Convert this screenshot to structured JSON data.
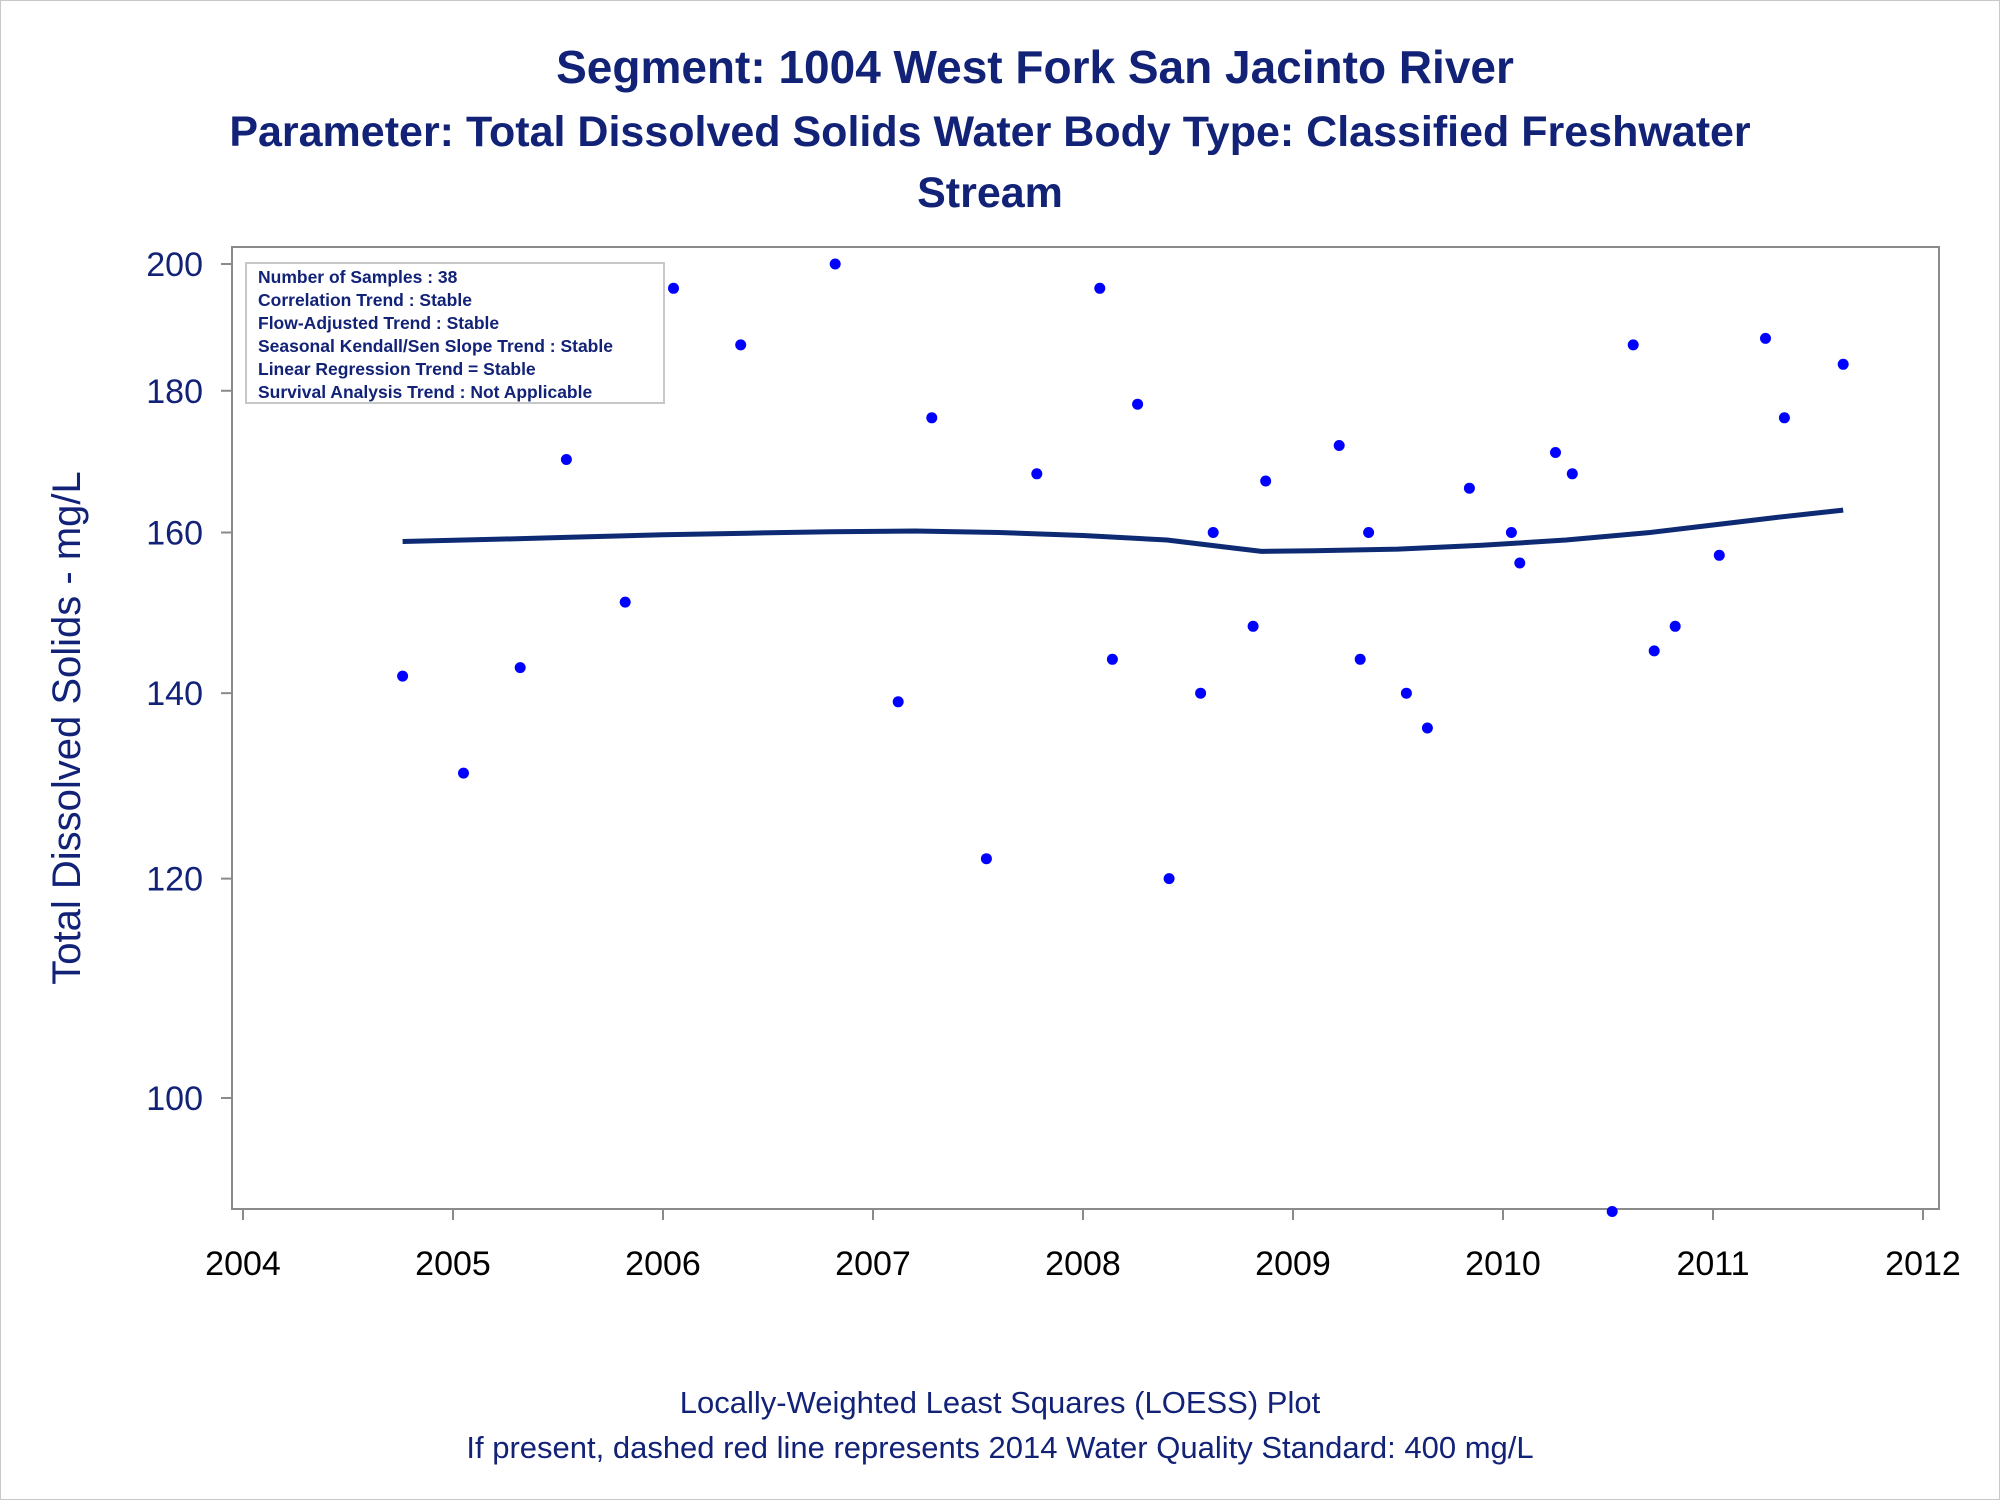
{
  "colors": {
    "text": "#112277",
    "points": "#0000ff",
    "loess": "#0d2a73",
    "axis": "#8a8a8a",
    "legend_border": "#c8c8c8"
  },
  "chart_data": {
    "type": "scatter",
    "title": "Segment: 1004  West Fork San Jacinto River",
    "subtitle_line1": "Parameter: Total Dissolved Solids   Water Body Type: Classified Freshwater",
    "subtitle_line2": "Stream",
    "ylabel": "Total Dissolved Solids - mg/L",
    "xlabel": "",
    "x_ticks": [
      "2004",
      "2005",
      "2006",
      "2007",
      "2008",
      "2009",
      "2010",
      "2011",
      "2012"
    ],
    "y_ticks": [
      "200",
      "180",
      "160",
      "140",
      "120",
      "100"
    ],
    "xlim": [
      2004,
      2012
    ],
    "ylim": [
      90,
      203
    ],
    "y_scale": "log",
    "grid": false,
    "legend_placement": "top-left",
    "stats": [
      "Number of Samples : 38",
      "Correlation Trend : Stable",
      "Flow-Adjusted Trend : Stable",
      "Seasonal Kendall/Sen Slope Trend : Stable",
      "Linear Regression Trend = Stable",
      "Survival Analysis Trend : Not Applicable"
    ],
    "points": [
      {
        "x": 2004.76,
        "y": 142
      },
      {
        "x": 2005.05,
        "y": 131
      },
      {
        "x": 2005.32,
        "y": 143
      },
      {
        "x": 2005.54,
        "y": 170
      },
      {
        "x": 2005.82,
        "y": 151
      },
      {
        "x": 2006.05,
        "y": 196
      },
      {
        "x": 2006.37,
        "y": 187
      },
      {
        "x": 2006.82,
        "y": 200
      },
      {
        "x": 2007.12,
        "y": 139
      },
      {
        "x": 2007.28,
        "y": 176
      },
      {
        "x": 2007.54,
        "y": 122
      },
      {
        "x": 2007.78,
        "y": 168
      },
      {
        "x": 2008.08,
        "y": 196
      },
      {
        "x": 2008.14,
        "y": 144
      },
      {
        "x": 2008.26,
        "y": 178
      },
      {
        "x": 2008.41,
        "y": 120
      },
      {
        "x": 2008.56,
        "y": 140
      },
      {
        "x": 2008.62,
        "y": 160
      },
      {
        "x": 2008.81,
        "y": 148
      },
      {
        "x": 2008.87,
        "y": 167
      },
      {
        "x": 2009.22,
        "y": 172
      },
      {
        "x": 2009.32,
        "y": 144
      },
      {
        "x": 2009.36,
        "y": 160
      },
      {
        "x": 2009.54,
        "y": 140
      },
      {
        "x": 2009.64,
        "y": 136
      },
      {
        "x": 2009.84,
        "y": 166
      },
      {
        "x": 2010.04,
        "y": 160
      },
      {
        "x": 2010.08,
        "y": 156
      },
      {
        "x": 2010.25,
        "y": 171
      },
      {
        "x": 2010.33,
        "y": 168
      },
      {
        "x": 2010.52,
        "y": 91
      },
      {
        "x": 2010.62,
        "y": 187
      },
      {
        "x": 2010.72,
        "y": 145
      },
      {
        "x": 2010.82,
        "y": 148
      },
      {
        "x": 2011.03,
        "y": 157
      },
      {
        "x": 2011.25,
        "y": 188
      },
      {
        "x": 2011.34,
        "y": 176
      },
      {
        "x": 2011.62,
        "y": 184
      }
    ],
    "loess": [
      {
        "x": 2004.76,
        "y": 158.8
      },
      {
        "x": 2005.2,
        "y": 159.1
      },
      {
        "x": 2005.6,
        "y": 159.4
      },
      {
        "x": 2006.0,
        "y": 159.7
      },
      {
        "x": 2006.4,
        "y": 159.9
      },
      {
        "x": 2006.8,
        "y": 160.1
      },
      {
        "x": 2007.2,
        "y": 160.2
      },
      {
        "x": 2007.6,
        "y": 160.0
      },
      {
        "x": 2008.0,
        "y": 159.6
      },
      {
        "x": 2008.4,
        "y": 159.0
      },
      {
        "x": 2008.7,
        "y": 158.0
      },
      {
        "x": 2008.85,
        "y": 157.5
      },
      {
        "x": 2009.1,
        "y": 157.6
      },
      {
        "x": 2009.5,
        "y": 157.8
      },
      {
        "x": 2009.9,
        "y": 158.3
      },
      {
        "x": 2010.3,
        "y": 159.0
      },
      {
        "x": 2010.7,
        "y": 160.0
      },
      {
        "x": 2011.0,
        "y": 161.0
      },
      {
        "x": 2011.3,
        "y": 162.0
      },
      {
        "x": 2011.62,
        "y": 163.0
      }
    ]
  },
  "footnotes": {
    "line1": "Locally-Weighted Least Squares (LOESS) Plot",
    "line2": "If present, dashed red line represents 2014 Water Quality Standard: 400   mg/L"
  }
}
